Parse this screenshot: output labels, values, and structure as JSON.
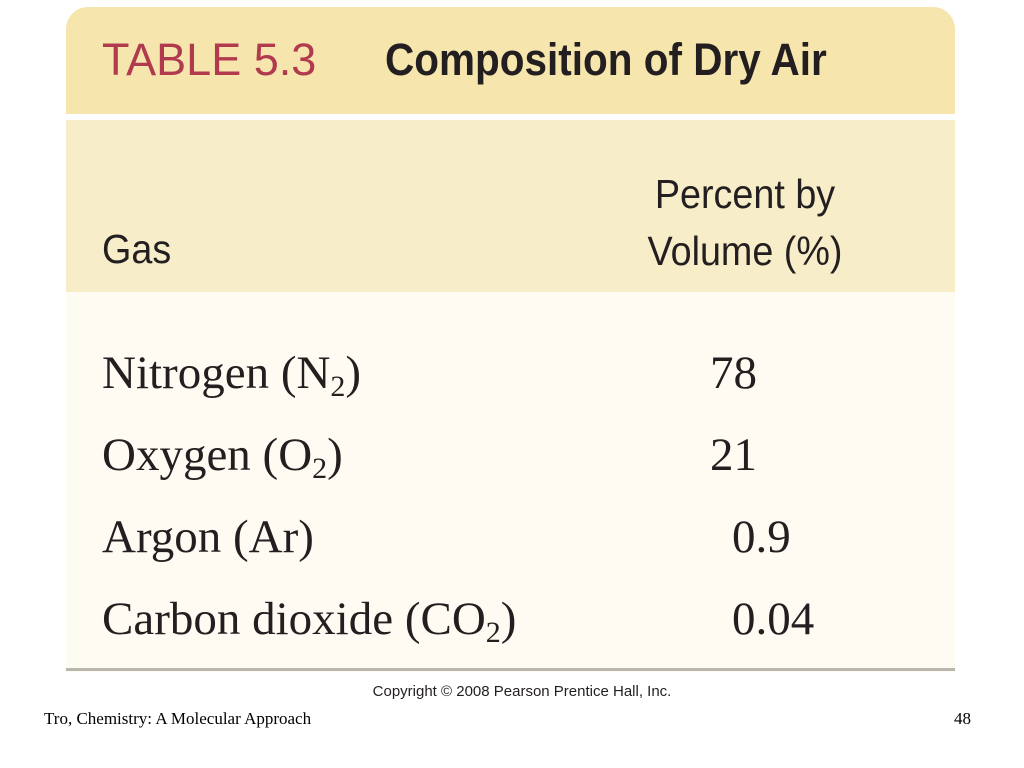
{
  "table": {
    "label": "TABLE 5.3",
    "title": "Composition of Dry Air",
    "columns": {
      "gas": "Gas",
      "percent_line1": "Percent by",
      "percent_line2": "Volume (%)"
    },
    "rows": [
      {
        "name": "Nitrogen (N",
        "subscript": "2",
        "suffix": ")",
        "value": "78"
      },
      {
        "name": "Oxygen (O",
        "subscript": "2",
        "suffix": ")",
        "value": "21"
      },
      {
        "name": "Argon (Ar)",
        "subscript": "",
        "suffix": "",
        "value": "0.9"
      },
      {
        "name": "Carbon dioxide (CO",
        "subscript": "2",
        "suffix": ")",
        "value": "0.04"
      }
    ]
  },
  "copyright": "Copyright © 2008 Pearson Prentice Hall, Inc.",
  "footer": {
    "left": "Tro, Chemistry: A Molecular Approach",
    "page_number": "48"
  },
  "colors": {
    "label_red": "#b23a4e",
    "title_band": "#f6e6ae",
    "header_band": "#f8edc9",
    "body_band": "#fefbf3",
    "text": "#231f20"
  }
}
